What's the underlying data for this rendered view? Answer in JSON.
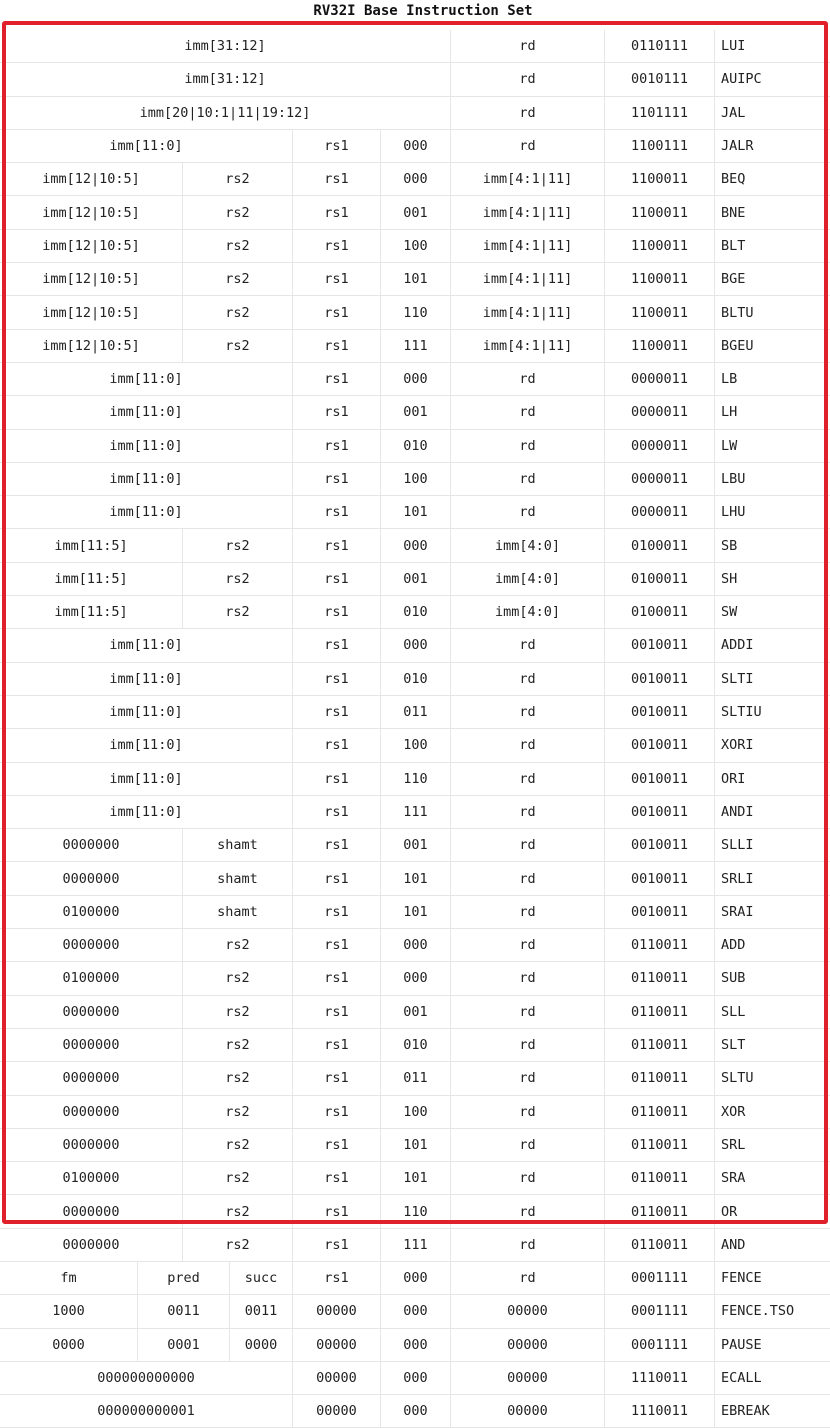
{
  "title": "RV32I Base Instruction Set",
  "highlight_color": "#e0202a",
  "rows": [
    {
      "type": "U",
      "c": [
        "imm[31:12]",
        "rd",
        "0110111",
        "LUI"
      ]
    },
    {
      "type": "U",
      "c": [
        "imm[31:12]",
        "rd",
        "0010111",
        "AUIPC"
      ]
    },
    {
      "type": "U",
      "c": [
        "imm[20|10:1|11|19:12]",
        "rd",
        "1101111",
        "JAL"
      ]
    },
    {
      "type": "I",
      "c": [
        "imm[11:0]",
        "rs1",
        "000",
        "rd",
        "1100111",
        "JALR"
      ]
    },
    {
      "type": "B",
      "c": [
        "imm[12|10:5]",
        "rs2",
        "rs1",
        "000",
        "imm[4:1|11]",
        "1100011",
        "BEQ"
      ]
    },
    {
      "type": "B",
      "c": [
        "imm[12|10:5]",
        "rs2",
        "rs1",
        "001",
        "imm[4:1|11]",
        "1100011",
        "BNE"
      ]
    },
    {
      "type": "B",
      "c": [
        "imm[12|10:5]",
        "rs2",
        "rs1",
        "100",
        "imm[4:1|11]",
        "1100011",
        "BLT"
      ]
    },
    {
      "type": "B",
      "c": [
        "imm[12|10:5]",
        "rs2",
        "rs1",
        "101",
        "imm[4:1|11]",
        "1100011",
        "BGE"
      ]
    },
    {
      "type": "B",
      "c": [
        "imm[12|10:5]",
        "rs2",
        "rs1",
        "110",
        "imm[4:1|11]",
        "1100011",
        "BLTU"
      ]
    },
    {
      "type": "B",
      "c": [
        "imm[12|10:5]",
        "rs2",
        "rs1",
        "111",
        "imm[4:1|11]",
        "1100011",
        "BGEU"
      ]
    },
    {
      "type": "I",
      "c": [
        "imm[11:0]",
        "rs1",
        "000",
        "rd",
        "0000011",
        "LB"
      ]
    },
    {
      "type": "I",
      "c": [
        "imm[11:0]",
        "rs1",
        "001",
        "rd",
        "0000011",
        "LH"
      ]
    },
    {
      "type": "I",
      "c": [
        "imm[11:0]",
        "rs1",
        "010",
        "rd",
        "0000011",
        "LW"
      ]
    },
    {
      "type": "I",
      "c": [
        "imm[11:0]",
        "rs1",
        "100",
        "rd",
        "0000011",
        "LBU"
      ]
    },
    {
      "type": "I",
      "c": [
        "imm[11:0]",
        "rs1",
        "101",
        "rd",
        "0000011",
        "LHU"
      ]
    },
    {
      "type": "B",
      "c": [
        "imm[11:5]",
        "rs2",
        "rs1",
        "000",
        "imm[4:0]",
        "0100011",
        "SB"
      ]
    },
    {
      "type": "B",
      "c": [
        "imm[11:5]",
        "rs2",
        "rs1",
        "001",
        "imm[4:0]",
        "0100011",
        "SH"
      ]
    },
    {
      "type": "B",
      "c": [
        "imm[11:5]",
        "rs2",
        "rs1",
        "010",
        "imm[4:0]",
        "0100011",
        "SW"
      ]
    },
    {
      "type": "I",
      "c": [
        "imm[11:0]",
        "rs1",
        "000",
        "rd",
        "0010011",
        "ADDI"
      ]
    },
    {
      "type": "I",
      "c": [
        "imm[11:0]",
        "rs1",
        "010",
        "rd",
        "0010011",
        "SLTI"
      ]
    },
    {
      "type": "I",
      "c": [
        "imm[11:0]",
        "rs1",
        "011",
        "rd",
        "0010011",
        "SLTIU"
      ]
    },
    {
      "type": "I",
      "c": [
        "imm[11:0]",
        "rs1",
        "100",
        "rd",
        "0010011",
        "XORI"
      ]
    },
    {
      "type": "I",
      "c": [
        "imm[11:0]",
        "rs1",
        "110",
        "rd",
        "0010011",
        "ORI"
      ]
    },
    {
      "type": "I",
      "c": [
        "imm[11:0]",
        "rs1",
        "111",
        "rd",
        "0010011",
        "ANDI"
      ]
    },
    {
      "type": "R",
      "c": [
        "0000000",
        "shamt",
        "rs1",
        "001",
        "rd",
        "0010011",
        "SLLI"
      ]
    },
    {
      "type": "R",
      "c": [
        "0000000",
        "shamt",
        "rs1",
        "101",
        "rd",
        "0010011",
        "SRLI"
      ]
    },
    {
      "type": "R",
      "c": [
        "0100000",
        "shamt",
        "rs1",
        "101",
        "rd",
        "0010011",
        "SRAI"
      ]
    },
    {
      "type": "R",
      "c": [
        "0000000",
        "rs2",
        "rs1",
        "000",
        "rd",
        "0110011",
        "ADD"
      ]
    },
    {
      "type": "R",
      "c": [
        "0100000",
        "rs2",
        "rs1",
        "000",
        "rd",
        "0110011",
        "SUB"
      ]
    },
    {
      "type": "R",
      "c": [
        "0000000",
        "rs2",
        "rs1",
        "001",
        "rd",
        "0110011",
        "SLL"
      ]
    },
    {
      "type": "R",
      "c": [
        "0000000",
        "rs2",
        "rs1",
        "010",
        "rd",
        "0110011",
        "SLT"
      ]
    },
    {
      "type": "R",
      "c": [
        "0000000",
        "rs2",
        "rs1",
        "011",
        "rd",
        "0110011",
        "SLTU"
      ]
    },
    {
      "type": "R",
      "c": [
        "0000000",
        "rs2",
        "rs1",
        "100",
        "rd",
        "0110011",
        "XOR"
      ]
    },
    {
      "type": "R",
      "c": [
        "0000000",
        "rs2",
        "rs1",
        "101",
        "rd",
        "0110011",
        "SRL"
      ]
    },
    {
      "type": "R",
      "c": [
        "0100000",
        "rs2",
        "rs1",
        "101",
        "rd",
        "0110011",
        "SRA"
      ]
    },
    {
      "type": "R",
      "c": [
        "0000000",
        "rs2",
        "rs1",
        "110",
        "rd",
        "0110011",
        "OR"
      ]
    },
    {
      "type": "R",
      "c": [
        "0000000",
        "rs2",
        "rs1",
        "111",
        "rd",
        "0110011",
        "AND"
      ]
    },
    {
      "type": "F",
      "c": [
        "fm",
        "pred",
        "succ",
        "rs1",
        "000",
        "rd",
        "0001111",
        "FENCE"
      ]
    },
    {
      "type": "F",
      "c": [
        "1000",
        "0011",
        "0011",
        "00000",
        "000",
        "00000",
        "0001111",
        "FENCE.TSO"
      ]
    },
    {
      "type": "F",
      "c": [
        "0000",
        "0001",
        "0000",
        "00000",
        "000",
        "00000",
        "0001111",
        "PAUSE"
      ]
    },
    {
      "type": "I",
      "c": [
        "000000000000",
        "00000",
        "000",
        "00000",
        "1110011",
        "ECALL"
      ]
    },
    {
      "type": "I",
      "c": [
        "000000000001",
        "00000",
        "000",
        "00000",
        "1110011",
        "EBREAK"
      ]
    }
  ]
}
